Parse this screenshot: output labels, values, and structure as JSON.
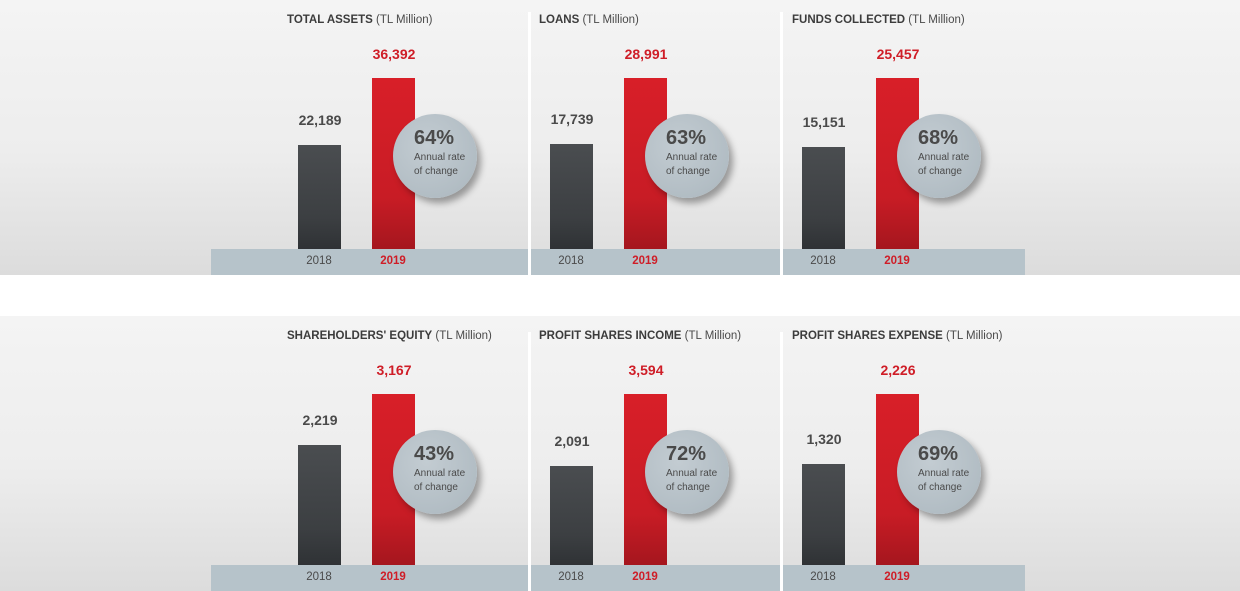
{
  "chart_data": [
    {
      "type": "bar",
      "title": "TOTAL ASSETS",
      "unit": "(TL Million)",
      "categories": [
        "2018",
        "2019"
      ],
      "values": [
        22189,
        36392
      ],
      "value_labels": [
        "22,189",
        "36,392"
      ],
      "rate": "64%",
      "rate_label": "Annual rate of change"
    },
    {
      "type": "bar",
      "title": "LOANS",
      "unit": "(TL Million)",
      "categories": [
        "2018",
        "2019"
      ],
      "values": [
        17739,
        28991
      ],
      "value_labels": [
        "17,739",
        "28,991"
      ],
      "rate": "63%",
      "rate_label": "Annual rate of change"
    },
    {
      "type": "bar",
      "title": "FUNDS COLLECTED",
      "unit": "(TL Million)",
      "categories": [
        "2018",
        "2019"
      ],
      "values": [
        15151,
        25457
      ],
      "value_labels": [
        "15,151",
        "25,457"
      ],
      "rate": "68%",
      "rate_label": "Annual rate of change"
    },
    {
      "type": "bar",
      "title": "SHAREHOLDERS' EQUITY",
      "unit": "(TL Million)",
      "categories": [
        "2018",
        "2019"
      ],
      "values": [
        2219,
        3167
      ],
      "value_labels": [
        "2,219",
        "3,167"
      ],
      "rate": "43%",
      "rate_label": "Annual rate of change"
    },
    {
      "type": "bar",
      "title": "PROFIT SHARES INCOME",
      "unit": "(TL Million)",
      "categories": [
        "2018",
        "2019"
      ],
      "values": [
        2091,
        3594
      ],
      "value_labels": [
        "2,091",
        "3,594"
      ],
      "rate": "72%",
      "rate_label": "Annual rate of change"
    },
    {
      "type": "bar",
      "title": "PROFIT SHARES EXPENSE",
      "unit": "(TL Million)",
      "categories": [
        "2018",
        "2019"
      ],
      "values": [
        1320,
        2226
      ],
      "value_labels": [
        "1,320",
        "2,226"
      ],
      "rate": "69%",
      "rate_label": "Annual rate of change"
    }
  ],
  "colors": {
    "bar_2018": "#404346",
    "bar_2019": "#cc1d26",
    "bubble": "#b4bfc6",
    "baseline": "#b6c3ca"
  }
}
